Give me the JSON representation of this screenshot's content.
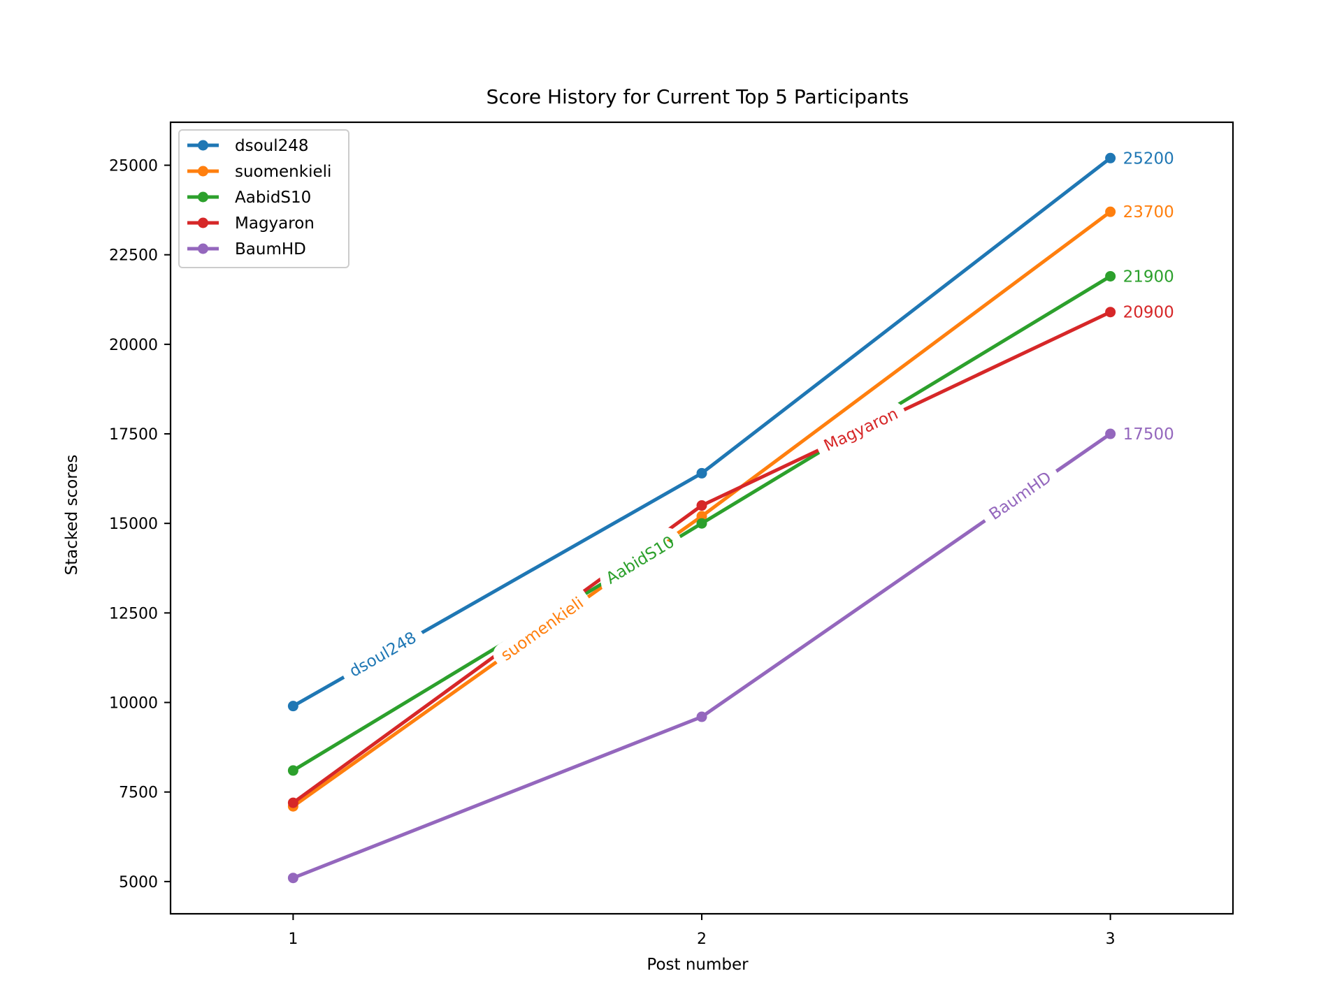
{
  "chart_data": {
    "type": "line",
    "title": "Score History for Current Top 5 Participants",
    "xlabel": "Post number",
    "ylabel": "Stacked scores",
    "x": [
      1,
      2,
      3
    ],
    "xlim": [
      0.7,
      3.3
    ],
    "ylim": [
      4100,
      26200
    ],
    "xticks": [
      1,
      2,
      3
    ],
    "yticks": [
      5000,
      7500,
      10000,
      12500,
      15000,
      17500,
      20000,
      22500,
      25000
    ],
    "grid": false,
    "legend": "top-left",
    "series": [
      {
        "name": "dsoul248",
        "color": "#1f77b4",
        "values": [
          9900,
          16400,
          25200
        ],
        "end_label": "25200",
        "inline_label": "dsoul248",
        "inline_t": 0.22
      },
      {
        "name": "suomenkieli",
        "color": "#ff7f0e",
        "values": [
          7100,
          15200,
          23700
        ],
        "end_label": "23700",
        "inline_label": "suomenkieli",
        "inline_t": 0.61
      },
      {
        "name": "AabidS10",
        "color": "#2ca02c",
        "values": [
          8100,
          15000,
          21900
        ],
        "end_label": "21900",
        "inline_label": "AabidS10",
        "inline_t": 0.85
      },
      {
        "name": "Magyaron",
        "color": "#d62728",
        "values": [
          7200,
          15500,
          20900
        ],
        "end_label": "20900",
        "inline_label": "Magyaron",
        "inline_t": 1.39
      },
      {
        "name": "BaumHD",
        "color": "#9467bd",
        "values": [
          5100,
          9600,
          17500
        ],
        "end_label": "17500",
        "inline_label": "BaumHD",
        "inline_t": 1.78
      }
    ]
  }
}
